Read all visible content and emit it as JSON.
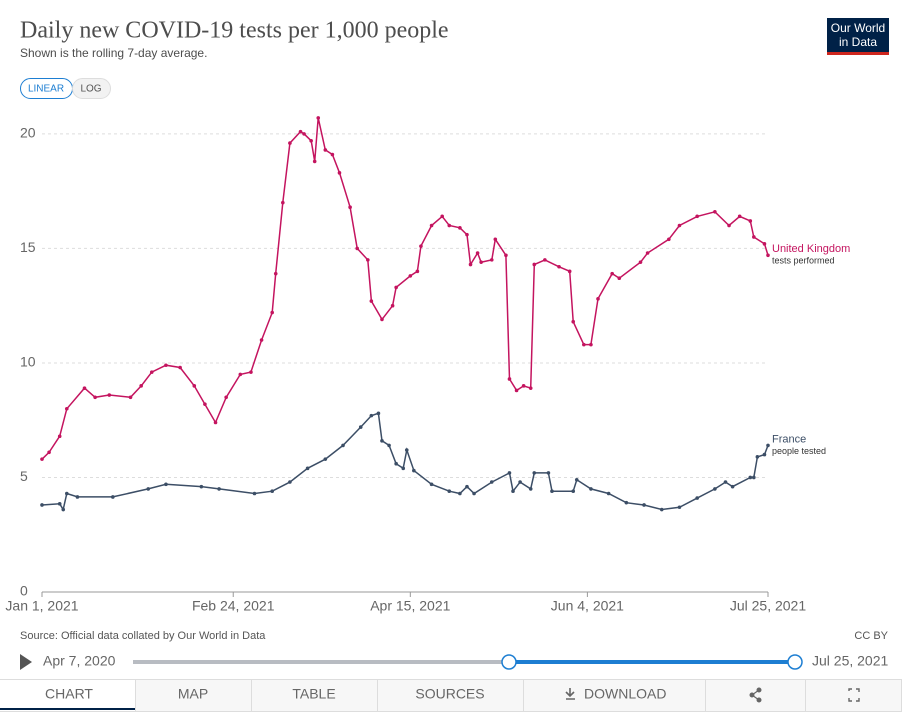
{
  "header": {
    "title": "Daily new COVID-19 tests per 1,000 people",
    "subtitle": "Shown is the rolling 7-day average.",
    "logo": [
      "Our World",
      "in Data"
    ]
  },
  "scale_buttons": [
    "LINEAR",
    "LOG"
  ],
  "chart_data": {
    "type": "line",
    "xlim": [
      "2021-01-01",
      "2021-07-25"
    ],
    "xticks": [
      {
        "value": "2021-01-01",
        "label": "Jan 1, 2021"
      },
      {
        "value": "2021-02-24",
        "label": "Feb 24, 2021"
      },
      {
        "value": "2021-04-15",
        "label": "Apr 15, 2021"
      },
      {
        "value": "2021-06-04",
        "label": "Jun 4, 2021"
      },
      {
        "value": "2021-07-25",
        "label": "Jul 25, 2021"
      }
    ],
    "ylim": [
      0,
      21
    ],
    "yticks": [
      0,
      5,
      10,
      15,
      20
    ],
    "grid": true,
    "series": [
      {
        "name": "United Kingdom",
        "annotation": "tests performed",
        "color": "#c4145f",
        "x": [
          "2021-01-01",
          "2021-01-03",
          "2021-01-06",
          "2021-01-08",
          "2021-01-13",
          "2021-01-16",
          "2021-01-20",
          "2021-01-26",
          "2021-01-29",
          "2021-02-01",
          "2021-02-05",
          "2021-02-09",
          "2021-02-13",
          "2021-02-16",
          "2021-02-19",
          "2021-02-22",
          "2021-02-26",
          "2021-03-01",
          "2021-03-04",
          "2021-03-07",
          "2021-03-08",
          "2021-03-10",
          "2021-03-12",
          "2021-03-15",
          "2021-03-16",
          "2021-03-18",
          "2021-03-19",
          "2021-03-20",
          "2021-03-22",
          "2021-03-24",
          "2021-03-26",
          "2021-03-29",
          "2021-03-31",
          "2021-04-03",
          "2021-04-04",
          "2021-04-07",
          "2021-04-10",
          "2021-04-11",
          "2021-04-15",
          "2021-04-17",
          "2021-04-18",
          "2021-04-21",
          "2021-04-24",
          "2021-04-26",
          "2021-04-29",
          "2021-05-01",
          "2021-05-02",
          "2021-05-04",
          "2021-05-05",
          "2021-05-08",
          "2021-05-09",
          "2021-05-12",
          "2021-05-13",
          "2021-05-15",
          "2021-05-17",
          "2021-05-19",
          "2021-05-20",
          "2021-05-23",
          "2021-05-27",
          "2021-05-30",
          "2021-05-31",
          "2021-06-03",
          "2021-06-05",
          "2021-06-07",
          "2021-06-11",
          "2021-06-13",
          "2021-06-19",
          "2021-06-21",
          "2021-06-27",
          "2021-06-30",
          "2021-07-05",
          "2021-07-10",
          "2021-07-14",
          "2021-07-17",
          "2021-07-20",
          "2021-07-21",
          "2021-07-24",
          "2021-07-25"
        ],
        "values": [
          5.8,
          6.1,
          6.8,
          8.0,
          8.9,
          8.5,
          8.6,
          8.5,
          9.0,
          9.6,
          9.9,
          9.8,
          9.0,
          8.2,
          7.4,
          8.5,
          9.5,
          9.6,
          11.0,
          12.2,
          13.9,
          17.0,
          19.6,
          20.1,
          20.0,
          19.7,
          18.8,
          20.7,
          19.3,
          19.1,
          18.3,
          16.8,
          15.0,
          14.5,
          12.7,
          11.9,
          12.5,
          13.3,
          13.8,
          14.0,
          15.1,
          16.0,
          16.4,
          16.0,
          15.9,
          15.6,
          14.3,
          14.8,
          14.4,
          14.5,
          15.4,
          14.7,
          9.3,
          8.8,
          9.0,
          8.9,
          14.3,
          14.5,
          14.2,
          14.0,
          11.8,
          10.8,
          10.8,
          12.8,
          13.9,
          13.7,
          14.4,
          14.8,
          15.4,
          16.0,
          16.4,
          16.6,
          16.0,
          16.4,
          16.2,
          15.5,
          15.2,
          14.7
        ]
      },
      {
        "name": "France",
        "annotation": "people tested",
        "color": "#3c4e66",
        "x": [
          "2021-01-01",
          "2021-01-06",
          "2021-01-07",
          "2021-01-08",
          "2021-01-11",
          "2021-01-21",
          "2021-01-31",
          "2021-02-05",
          "2021-02-15",
          "2021-02-20",
          "2021-03-02",
          "2021-03-07",
          "2021-03-12",
          "2021-03-17",
          "2021-03-22",
          "2021-03-27",
          "2021-04-01",
          "2021-04-04",
          "2021-04-06",
          "2021-04-07",
          "2021-04-09",
          "2021-04-11",
          "2021-04-13",
          "2021-04-14",
          "2021-04-16",
          "2021-04-21",
          "2021-04-26",
          "2021-04-29",
          "2021-05-01",
          "2021-05-03",
          "2021-05-08",
          "2021-05-13",
          "2021-05-14",
          "2021-05-16",
          "2021-05-19",
          "2021-05-20",
          "2021-05-24",
          "2021-05-25",
          "2021-05-31",
          "2021-06-01",
          "2021-06-05",
          "2021-06-10",
          "2021-06-15",
          "2021-06-20",
          "2021-06-25",
          "2021-06-30",
          "2021-07-05",
          "2021-07-10",
          "2021-07-13",
          "2021-07-15",
          "2021-07-20",
          "2021-07-21",
          "2021-07-22",
          "2021-07-24",
          "2021-07-25"
        ],
        "values": [
          3.8,
          3.85,
          3.6,
          4.3,
          4.15,
          4.15,
          4.5,
          4.7,
          4.6,
          4.5,
          4.3,
          4.4,
          4.8,
          5.4,
          5.8,
          6.4,
          7.2,
          7.7,
          7.8,
          6.6,
          6.4,
          5.6,
          5.4,
          6.2,
          5.3,
          4.7,
          4.4,
          4.3,
          4.6,
          4.3,
          4.8,
          5.2,
          4.4,
          4.8,
          4.5,
          5.2,
          5.2,
          4.4,
          4.4,
          4.9,
          4.5,
          4.3,
          3.9,
          3.8,
          3.6,
          3.7,
          4.1,
          4.5,
          4.8,
          4.6,
          5.0,
          5.0,
          5.9,
          6.0,
          6.4
        ]
      }
    ]
  },
  "source": "Source: Official data collated by Our World in Data",
  "license": "CC BY",
  "timeline": {
    "start": "Apr 7, 2020",
    "end": "Jul 25, 2021"
  },
  "tabs": [
    "CHART",
    "MAP",
    "TABLE",
    "SOURCES",
    "DOWNLOAD"
  ]
}
